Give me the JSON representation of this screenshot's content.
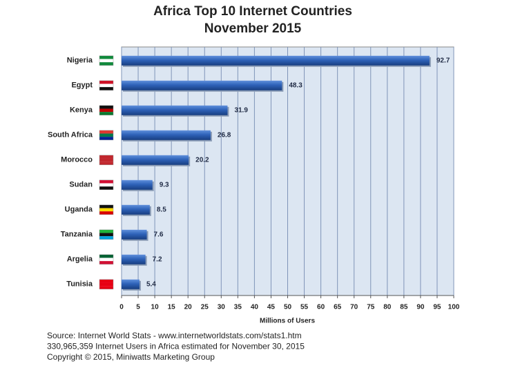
{
  "chart_data": {
    "type": "bar",
    "orientation": "horizontal",
    "title": "Africa Top 10 Internet Countries",
    "subtitle": "November 2015",
    "categories": [
      "Nigeria",
      "Egypt",
      "Kenya",
      "South Africa",
      "Morocco",
      "Sudan",
      "Uganda",
      "Tanzania",
      "Argelia",
      "Tunisia"
    ],
    "values": [
      92.7,
      48.3,
      31.9,
      26.8,
      20.2,
      9.3,
      8.5,
      7.6,
      7.2,
      5.4
    ],
    "color": "#2e62b8",
    "xlim": [
      0,
      100
    ],
    "xticks": [
      0,
      5,
      10,
      15,
      20,
      25,
      30,
      35,
      40,
      45,
      50,
      55,
      60,
      65,
      70,
      75,
      80,
      85,
      90,
      95,
      100
    ],
    "xlabel": "Millions of Users",
    "grid": true,
    "footer": [
      "Source: Internet World Stats - www.internetworldstats.com/stats1.htm",
      "330,965,359 Internet Users in Africa estimated for November 30, 2015",
      "Copyright © 2015, Miniwatts Marketing Group"
    ]
  }
}
